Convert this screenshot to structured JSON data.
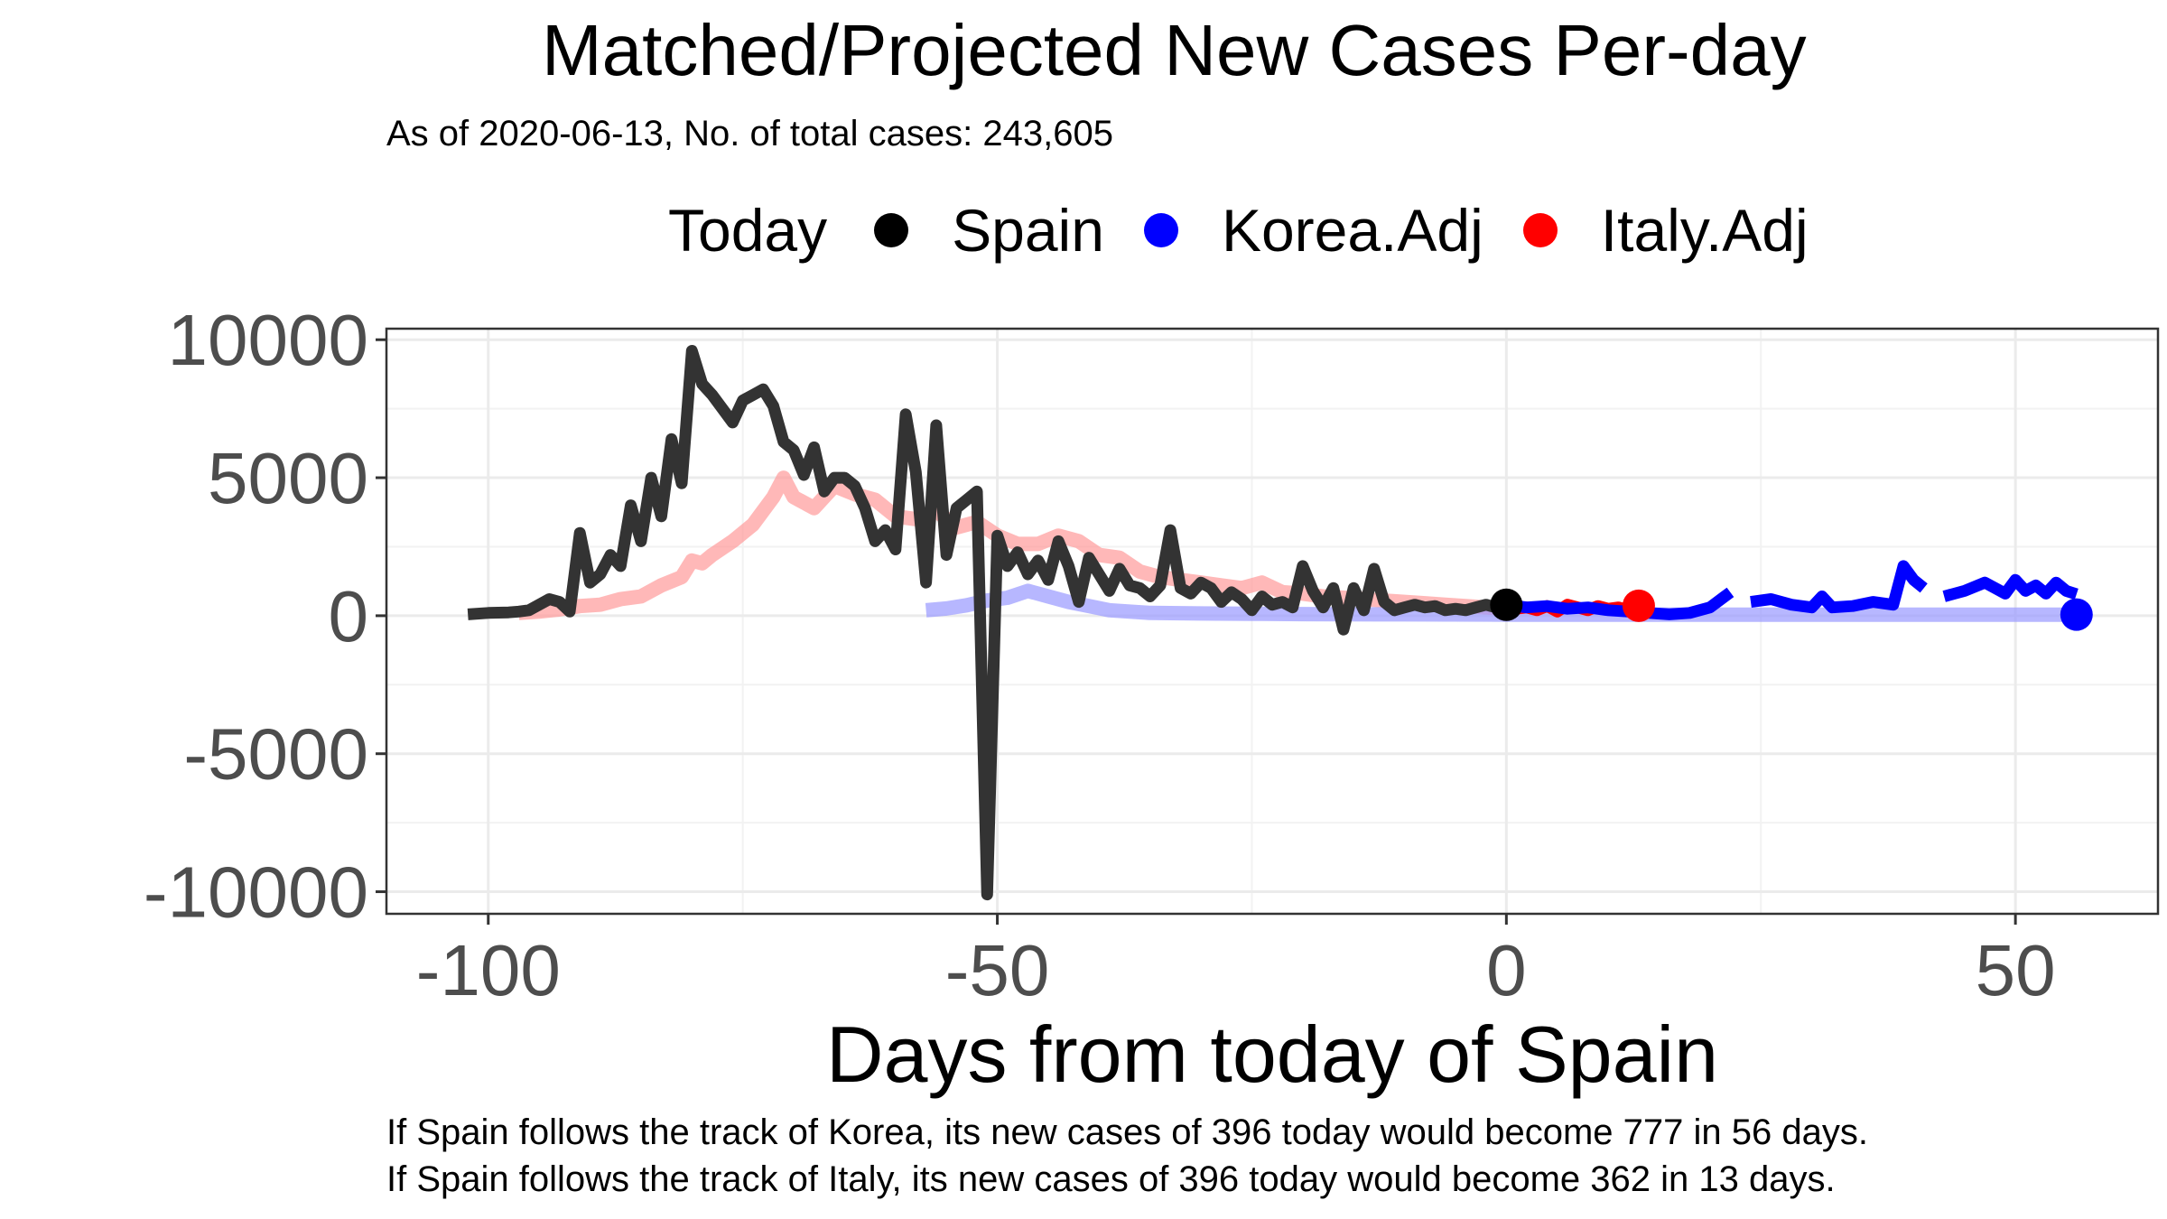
{
  "chart_data": {
    "type": "line",
    "title": "Matched/Projected New Cases Per-day",
    "subtitle": "As of 2020-06-13, No. of total cases: 243,605",
    "xlabel": "Days from today of Spain",
    "ylabel": "",
    "xlim": [
      -110,
      64
    ],
    "ylim": [
      -10800,
      10400
    ],
    "x_ticks": [
      -100,
      -50,
      0,
      50
    ],
    "x_tick_labels": [
      "-100",
      "-50",
      "0",
      "50"
    ],
    "y_ticks": [
      -10000,
      -5000,
      0,
      5000,
      10000
    ],
    "y_tick_labels": [
      "-10000",
      "-5000",
      "0",
      "5000",
      "10000"
    ],
    "grid": true,
    "legend": {
      "title": "Today",
      "position": "top",
      "items": [
        {
          "label": "Spain",
          "color": "#000000"
        },
        {
          "label": "Korea.Adj",
          "color": "#0000ff"
        },
        {
          "label": "Italy.Adj",
          "color": "#ff0000"
        }
      ]
    },
    "series": [
      {
        "name": "Italy.Adj",
        "style": "faded",
        "color": "#ff9a9a",
        "x": [
          -97,
          -95,
          -93,
          -91,
          -89,
          -87,
          -85,
          -83,
          -81,
          -80,
          -79,
          -78,
          -76,
          -74,
          -72,
          -71,
          -70,
          -68,
          -66,
          -64,
          -62,
          -60,
          -58,
          -56,
          -54,
          -52,
          -50,
          -48,
          -46,
          -44,
          -42,
          -40,
          -38,
          -36,
          -34,
          -32,
          -30,
          -28,
          -26,
          -24,
          -22,
          -20,
          -18,
          -16,
          -14,
          -12,
          -10,
          -8,
          -6,
          -4,
          -2,
          0
        ],
        "y": [
          100,
          150,
          230,
          350,
          400,
          600,
          700,
          1100,
          1400,
          2000,
          1900,
          2200,
          2700,
          3300,
          4300,
          5000,
          4300,
          3900,
          4700,
          4400,
          4200,
          3600,
          3500,
          3800,
          3200,
          3400,
          2900,
          2600,
          2600,
          2900,
          2700,
          2200,
          2100,
          1600,
          1400,
          1300,
          1200,
          1100,
          1000,
          1200,
          850,
          800,
          700,
          650,
          600,
          550,
          500,
          450,
          400,
          350,
          300,
          250
        ]
      },
      {
        "name": "Korea.Adj",
        "style": "faded",
        "color": "#9999ff",
        "x": [
          -57,
          -55,
          -53,
          -51,
          -49,
          -47,
          -45,
          -43,
          -41,
          -39,
          -37,
          -35,
          -30,
          -25,
          -20,
          -10,
          0,
          10,
          20,
          30,
          40,
          50,
          56
        ],
        "y": [
          200,
          260,
          380,
          550,
          650,
          900,
          700,
          500,
          350,
          200,
          150,
          100,
          80,
          70,
          60,
          50,
          40,
          40,
          40,
          40,
          40,
          40,
          40
        ]
      },
      {
        "name": "Spain",
        "style": "solid",
        "color": "#333333",
        "x": [
          -102,
          -100,
          -98,
          -97,
          -96,
          -94,
          -93,
          -92,
          -91,
          -90,
          -89,
          -88,
          -87,
          -86,
          -85,
          -84,
          -83,
          -82,
          -81,
          -80,
          -79,
          -78,
          -77,
          -76,
          -75,
          -74,
          -73,
          -72,
          -71,
          -70,
          -69,
          -68,
          -67,
          -66,
          -65,
          -64,
          -63,
          -62,
          -61,
          -60,
          -59,
          -58,
          -57,
          -56,
          -55,
          -54,
          -53,
          -52,
          -51,
          -50,
          -49,
          -48,
          -47,
          -46,
          -45,
          -44,
          -43,
          -42,
          -41,
          -40,
          -39,
          -38,
          -37,
          -36,
          -35,
          -34,
          -33,
          -32,
          -31,
          -30,
          -29,
          -28,
          -27,
          -26,
          -25,
          -24,
          -23,
          -22,
          -21,
          -20,
          -19,
          -18,
          -17,
          -16,
          -15,
          -14,
          -13,
          -12,
          -11,
          -10,
          -9,
          -8,
          -7,
          -6,
          -5,
          -4,
          -3,
          -2,
          -1,
          0
        ],
        "y": [
          50,
          100,
          120,
          150,
          200,
          600,
          500,
          150,
          3000,
          1200,
          1500,
          2200,
          1800,
          4000,
          2700,
          5000,
          3600,
          6400,
          4800,
          9600,
          8400,
          8000,
          7500,
          7000,
          7800,
          8000,
          8200,
          7600,
          6300,
          6000,
          5100,
          6100,
          4500,
          5000,
          5000,
          4700,
          3900,
          2700,
          3100,
          2400,
          7300,
          5200,
          1200,
          6900,
          2200,
          3900,
          4200,
          4500,
          -10100,
          2900,
          1800,
          2300,
          1500,
          2000,
          1300,
          2700,
          1800,
          500,
          2100,
          1500,
          900,
          1700,
          1100,
          1000,
          700,
          1100,
          3100,
          1000,
          800,
          1200,
          1000,
          500,
          850,
          600,
          200,
          700,
          400,
          500,
          300,
          1800,
          900,
          300,
          1000,
          -500,
          1000,
          200,
          1700,
          500,
          200,
          300,
          400,
          300,
          350,
          200,
          250,
          200,
          300,
          400,
          300,
          396
        ]
      },
      {
        "name": "Italy.Adj",
        "style": "solid",
        "color": "#ff0000",
        "x": [
          0,
          1,
          2,
          3,
          4,
          5,
          6,
          7,
          8,
          9,
          10,
          11,
          12,
          13
        ],
        "y": [
          396,
          250,
          300,
          200,
          350,
          150,
          400,
          300,
          200,
          350,
          250,
          300,
          200,
          362
        ]
      },
      {
        "name": "Korea.Adj",
        "style": "solid",
        "color": "#0000ff",
        "x": [
          0,
          2,
          4,
          6,
          8,
          10,
          12,
          14,
          16,
          18,
          20,
          22,
          null,
          24,
          26,
          28,
          30,
          31,
          32,
          34,
          36,
          38,
          39,
          40,
          41,
          null,
          43,
          45,
          47,
          49,
          50,
          51,
          52,
          53,
          54,
          55,
          56
        ],
        "y": [
          396,
          300,
          350,
          250,
          300,
          200,
          150,
          100,
          50,
          100,
          300,
          850,
          null,
          500,
          600,
          400,
          300,
          700,
          300,
          350,
          500,
          400,
          1800,
          1300,
          1000,
          null,
          700,
          900,
          1200,
          800,
          1300,
          900,
          1100,
          800,
          1200,
          900,
          777
        ]
      }
    ],
    "today_markers": [
      {
        "label": "Spain",
        "x": 0,
        "y": 396,
        "color": "#000000"
      },
      {
        "label": "Italy.Adj",
        "x": 13,
        "y": 362,
        "color": "#ff0000"
      },
      {
        "label": "Korea.Adj",
        "x": 56,
        "y": 40,
        "color": "#0000ff"
      }
    ],
    "captions": [
      "If Spain follows the track of Korea, its new cases of 396 today would become 777 in 56 days.",
      "If Spain follows the track of Italy, its new cases of 396 today would become 362 in 13 days."
    ]
  }
}
